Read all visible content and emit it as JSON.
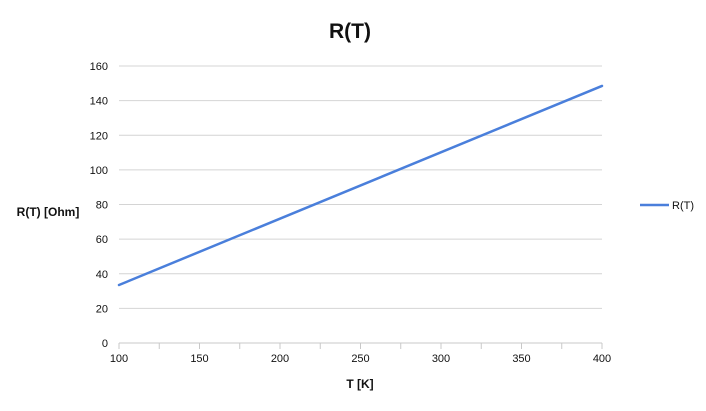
{
  "chart_data": {
    "type": "line",
    "title": "R(T)",
    "xlabel": "T [K]",
    "ylabel": "R(T) [Ohm]",
    "xlim": [
      100,
      400
    ],
    "ylim": [
      0,
      160
    ],
    "x_ticks": [
      100,
      150,
      200,
      250,
      300,
      350,
      400
    ],
    "y_ticks": [
      0,
      20,
      40,
      60,
      80,
      100,
      120,
      140,
      160
    ],
    "grid": "horizontal",
    "legend_position": "right",
    "series": [
      {
        "name": "R(T)",
        "color": "#4a7fdb",
        "x": [
          100,
          400
        ],
        "y": [
          33.5,
          148.5
        ]
      }
    ]
  }
}
